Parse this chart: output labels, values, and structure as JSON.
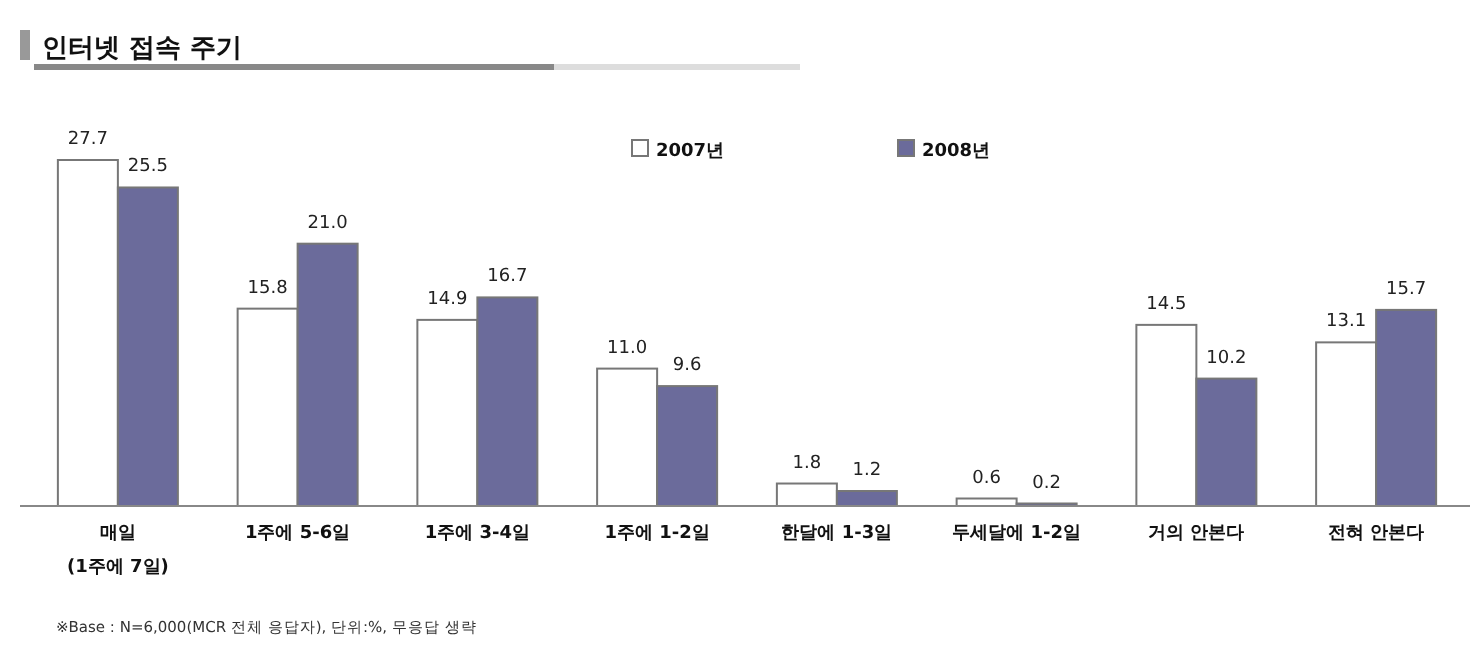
{
  "chart_data": {
    "type": "bar",
    "title": "인터넷 접속 주기",
    "categories": [
      "매일\n(1주에 7일)",
      "1주에 5-6일",
      "1주에 3-4일",
      "1주에 1-2일",
      "한달에 1-3일",
      "두세달에 1-2일",
      "거의 안본다",
      "전혀 안본다"
    ],
    "series": [
      {
        "name": "2007년",
        "color": "#ffffff",
        "values": [
          27.7,
          15.8,
          14.9,
          11.0,
          1.8,
          0.6,
          14.5,
          13.1
        ],
        "value_labels": [
          "27.7",
          "15.8",
          "14.9",
          "11.0",
          "1.8",
          "0.6",
          "14.5",
          "13.1"
        ]
      },
      {
        "name": "2008년",
        "color": "#6b6b9b",
        "values": [
          25.5,
          21.0,
          16.7,
          9.6,
          1.2,
          0.2,
          10.2,
          15.7
        ],
        "value_labels": [
          "25.5",
          "21.0",
          "16.7",
          "9.6",
          "1.2",
          "0.2",
          "10.2",
          "15.7"
        ]
      }
    ],
    "legend": "top",
    "annotations": [
      "※Base : N=6,000(MCR 전체 응답자), 단위:%, 무응답 생략"
    ]
  }
}
